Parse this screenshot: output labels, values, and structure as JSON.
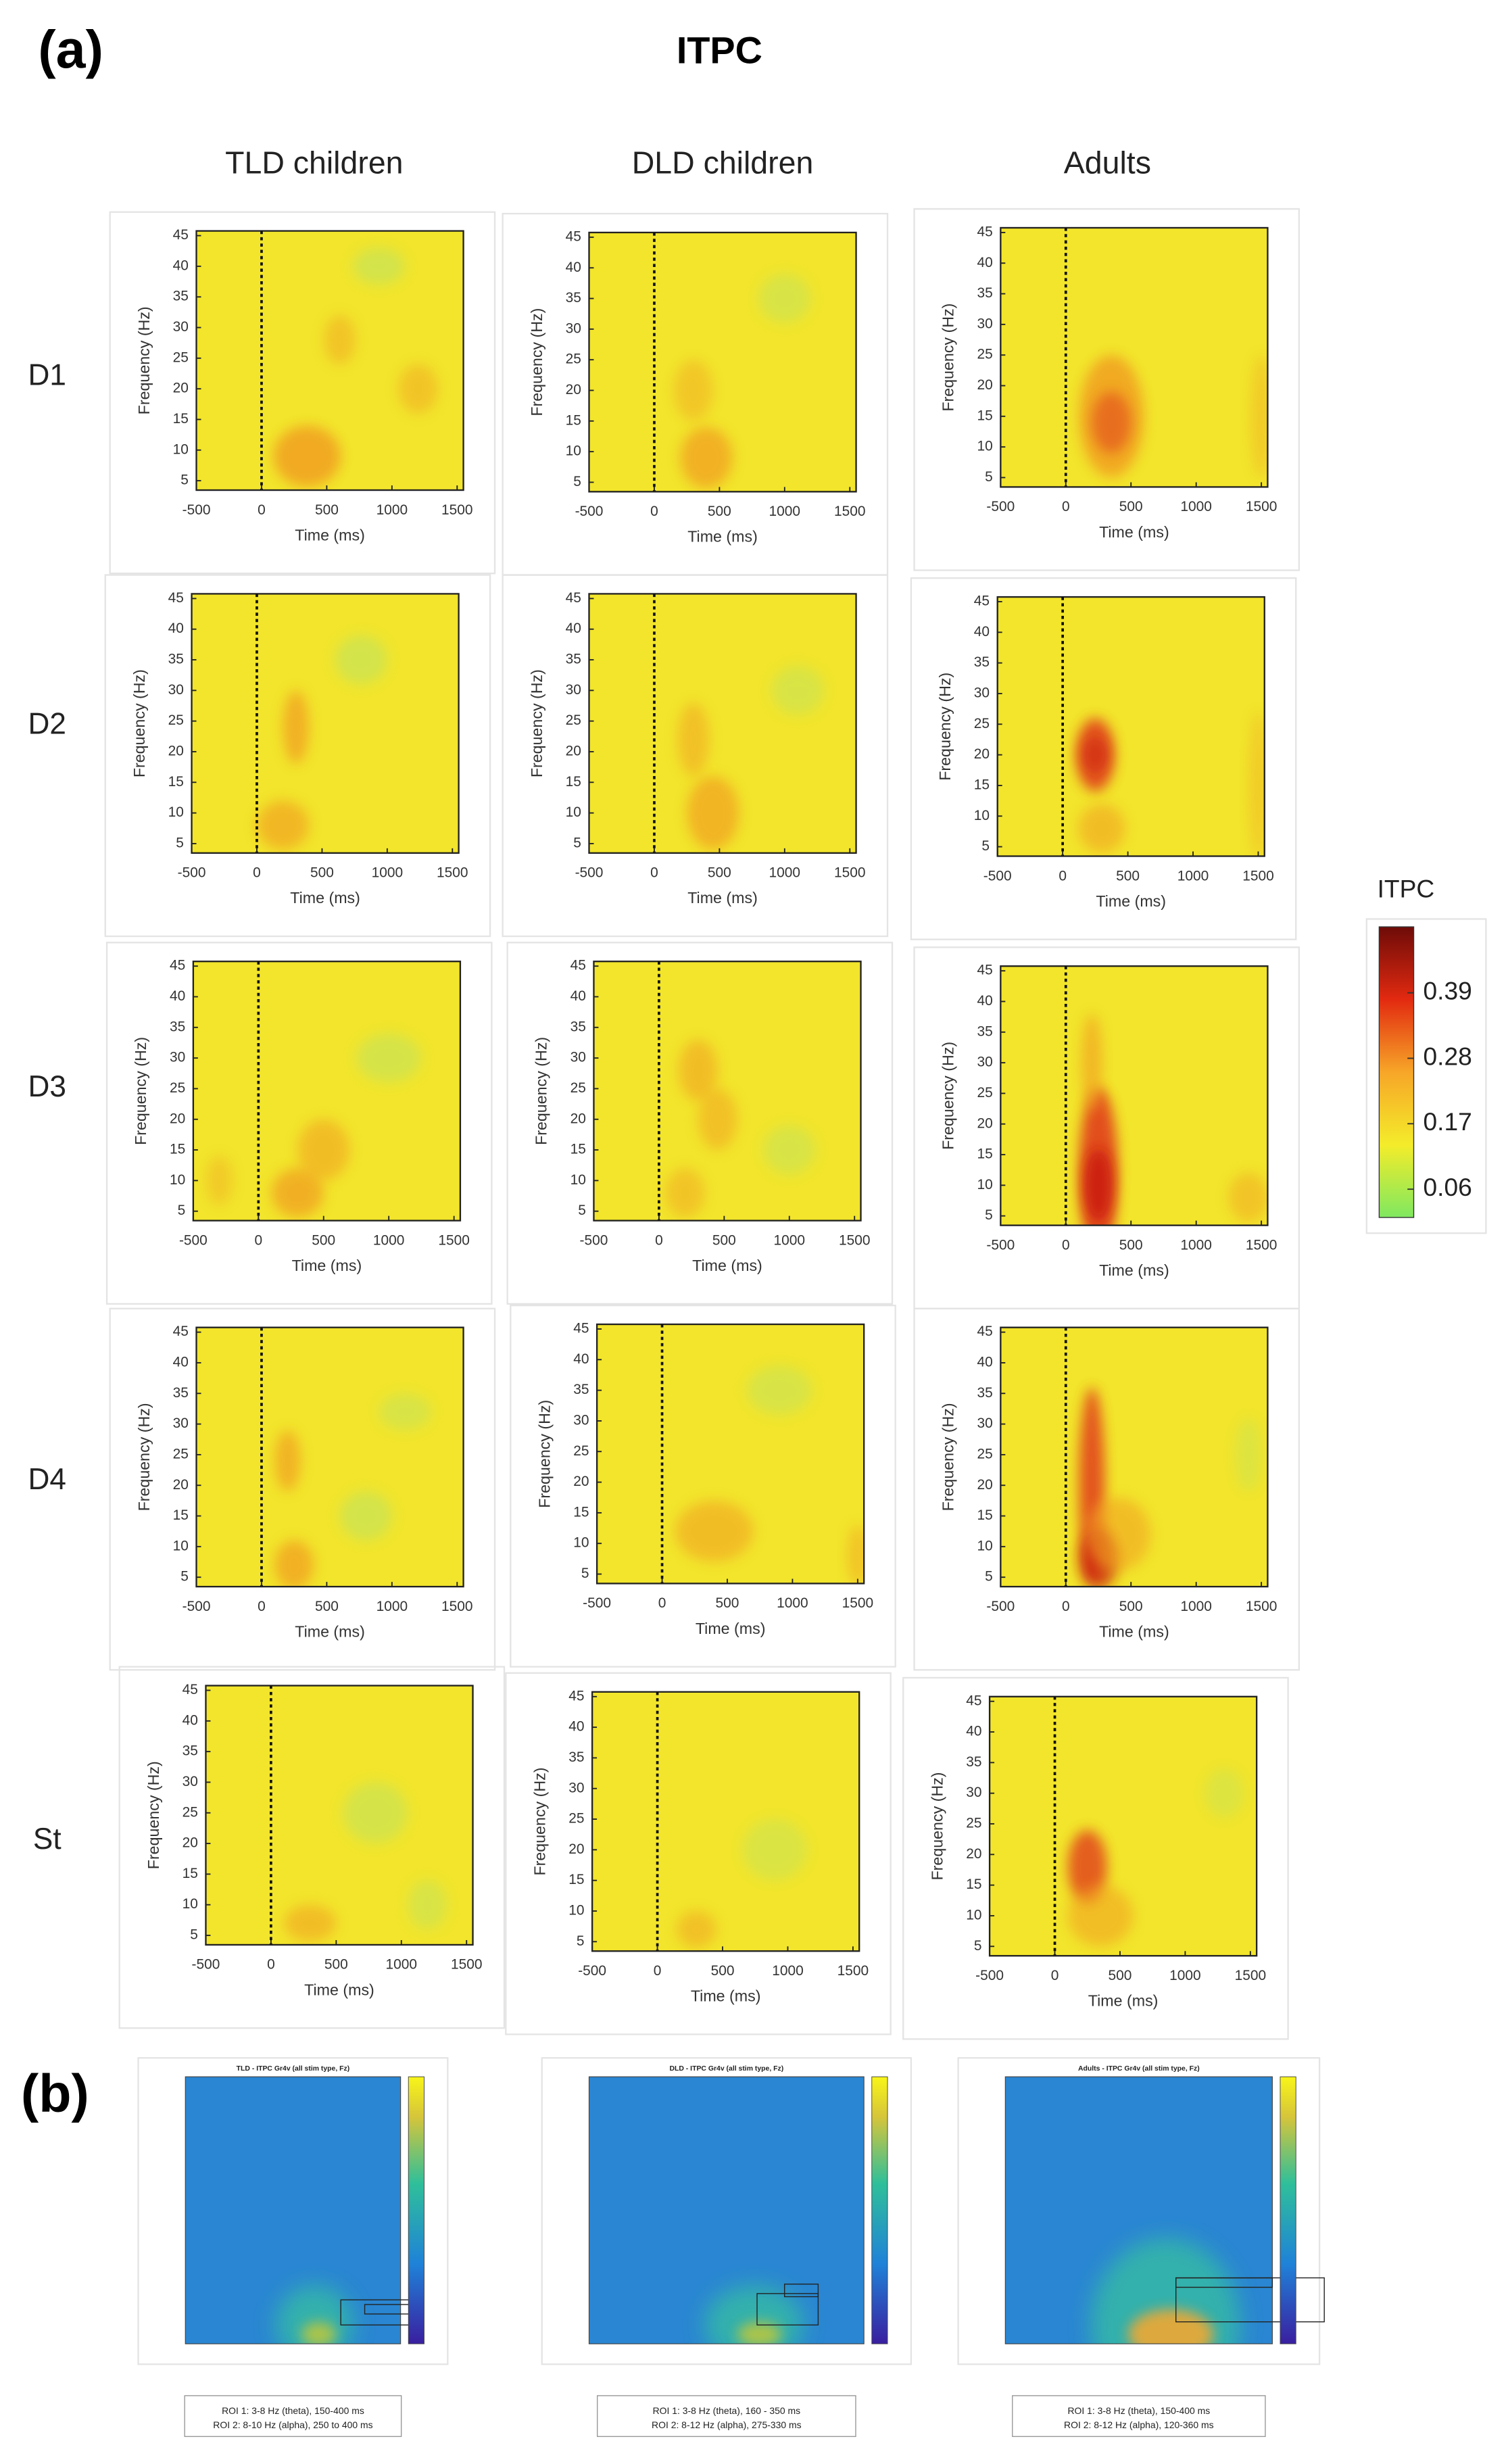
{
  "panel_a": {
    "label": "(a)",
    "title": "ITPC",
    "columns": [
      "TLD children",
      "DLD children",
      "Adults"
    ],
    "rows": [
      "D1",
      "D2",
      "D3",
      "D4",
      "St"
    ],
    "axes": {
      "ylabel": "Frequency (Hz)",
      "xlabel": "Time (ms)",
      "yticks": [
        5,
        10,
        15,
        20,
        25,
        30,
        35,
        40,
        45
      ],
      "xticks": [
        -500,
        0,
        500,
        1000,
        1500
      ]
    },
    "colorbar": {
      "title": "ITPC",
      "ticks": [
        0.06,
        0.17,
        0.28,
        0.39
      ]
    }
  },
  "panel_b": {
    "label": "(b)",
    "plots": [
      {
        "title": "TLD - ITPC Gr4v (all stim type, Fz)",
        "roi": [
          "ROI 1: 3-8 Hz (theta), 150-400 ms",
          "ROI 2: 8-10 Hz (alpha), 250 to 400 ms"
        ]
      },
      {
        "title": "DLD - ITPC Gr4v (all stim type, Fz)",
        "roi": [
          "ROI 1: 3-8 Hz (theta), 160 - 350 ms",
          "ROI 2: 8-12 Hz (alpha), 275-330 ms"
        ]
      },
      {
        "title": "Adults - ITPC Gr4v (all stim type, Fz)",
        "roi": [
          "ROI 1: 3-8 Hz (theta), 150-400 ms",
          "ROI 2: 8-12 Hz (alpha), 120-360 ms"
        ]
      }
    ]
  }
}
